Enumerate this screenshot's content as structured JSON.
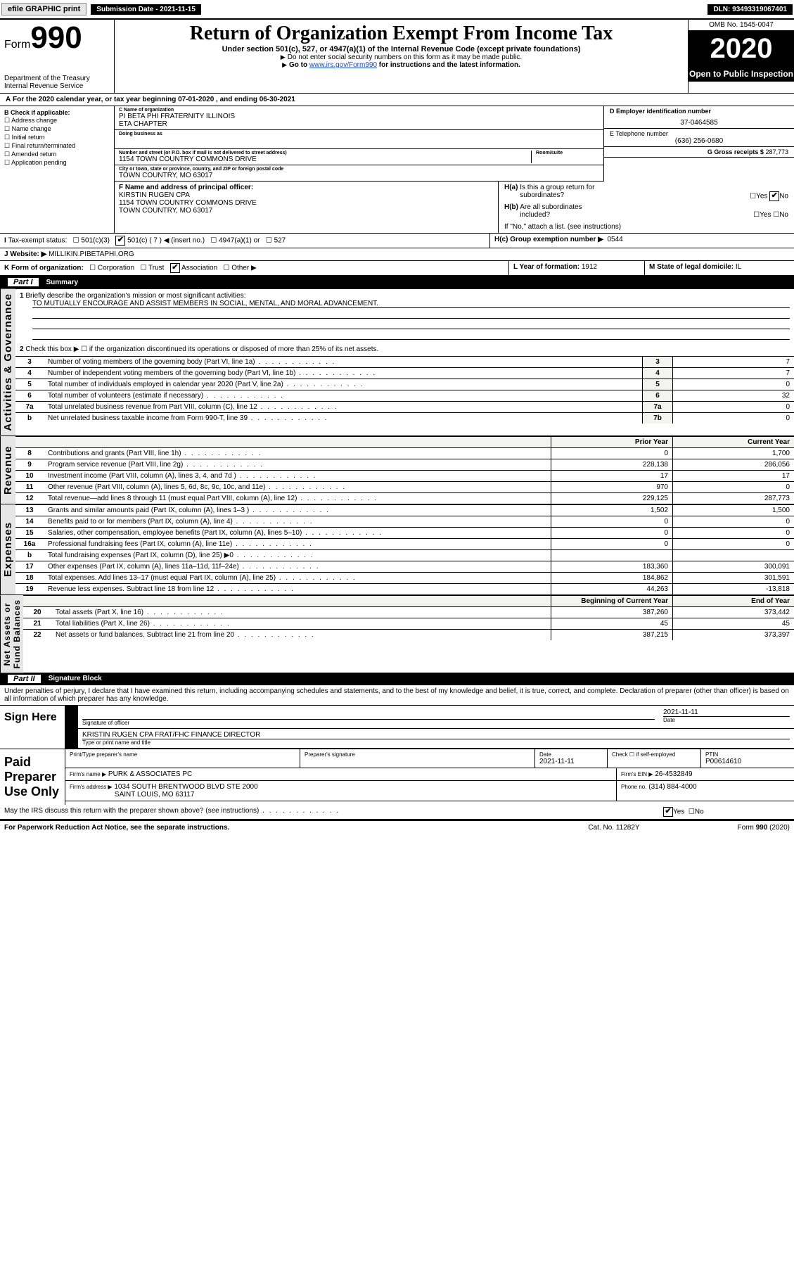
{
  "topbar": {
    "efile": "efile GRAPHIC print",
    "sub_label": "Submission Date - 2021-11-15",
    "dln": "DLN: 93493319067401"
  },
  "omb": "OMB No. 1545-0047",
  "form_no": "990",
  "form_word": "Form",
  "title": "Return of Organization Exempt From Income Tax",
  "subtitle": "Under section 501(c), 527, or 4947(a)(1) of the Internal Revenue Code (except private foundations)",
  "instr1": "Do not enter social security numbers on this form as it may be made public.",
  "instr2_pre": "Go to ",
  "instr2_link": "www.irs.gov/Form990",
  "instr2_post": " for instructions and the latest information.",
  "dept": "Department of the Treasury\nInternal Revenue Service",
  "year": "2020",
  "open": "Open to Public Inspection",
  "tax_year": "For the 2020 calendar year, or tax year beginning 07-01-2020    , and ending 06-30-2021",
  "B": {
    "hdr": "B Check if applicable:",
    "items": [
      "Address change",
      "Name change",
      "Initial return",
      "Final return/terminated",
      "Amended return",
      "Application pending"
    ]
  },
  "C": {
    "name_label": "C Name of organization",
    "name": "PI BETA PHI FRATERNITY ILLINOIS\nETA CHAPTER",
    "dba_label": "Doing business as",
    "addr_label": "Number and street (or P.O. box if mail is not delivered to street address)",
    "room_label": "Room/suite",
    "addr": "1154 TOWN COUNTRY COMMONS DRIVE",
    "city_label": "City or town, state or province, country, and ZIP or foreign postal code",
    "city": "TOWN COUNTRY, MO  63017"
  },
  "D": {
    "label": "D Employer identification number",
    "val": "37-0464585"
  },
  "E": {
    "label": "E Telephone number",
    "val": "(636) 256-0680"
  },
  "G": {
    "label": "G Gross receipts $",
    "val": "287,773"
  },
  "F": {
    "label": "F  Name and address of principal officer:",
    "name": "KIRSTIN RUGEN CPA",
    "addr1": "1154 TOWN COUNTRY COMMONS DRIVE",
    "addr2": "TOWN COUNTRY, MO  63017"
  },
  "H": {
    "a": "H(a)  Is this a group return for subordinates?",
    "b": "H(b)  Are all subordinates included?",
    "note": "If \"No,\" attach a list. (see instructions)",
    "c_label": "H(c)  Group exemption number ▶",
    "c_val": "0544",
    "yes": "Yes",
    "no": "No"
  },
  "I": {
    "label": "I  Tax-exempt status:",
    "insert": "501(c) ( 7 ) ◀ (insert no.)",
    "a": "501(c)(3)",
    "b": "4947(a)(1) or",
    "c": "527"
  },
  "J": {
    "label": "J   Website: ▶",
    "val": "MILLIKIN.PIBETAPHI.ORG"
  },
  "K": {
    "label": "K Form of organization:",
    "opts": [
      "Corporation",
      "Trust",
      "Association",
      "Other ▶"
    ],
    "checked": 2
  },
  "L": {
    "label": "L Year of formation:",
    "val": "1912"
  },
  "M": {
    "label": "M State of legal domicile:",
    "val": "IL"
  },
  "part1": {
    "num": "Part I",
    "title": "Summary"
  },
  "p1": {
    "l1": "Briefly describe the organization's mission or most significant activities:",
    "l1v": "TO MUTUALLY ENCOURAGE AND ASSIST MEMBERS IN SOCIAL, MENTAL, AND MORAL ADVANCEMENT.",
    "l2": "Check this box ▶ ☐  if the organization discontinued its operations or disposed of more than 25% of its net assets.",
    "lines_gov": [
      {
        "n": "3",
        "t": "Number of voting members of the governing body (Part VI, line 1a)",
        "r": "3",
        "v": "7"
      },
      {
        "n": "4",
        "t": "Number of independent voting members of the governing body (Part VI, line 1b)",
        "r": "4",
        "v": "7"
      },
      {
        "n": "5",
        "t": "Total number of individuals employed in calendar year 2020 (Part V, line 2a)",
        "r": "5",
        "v": "0"
      },
      {
        "n": "6",
        "t": "Total number of volunteers (estimate if necessary)",
        "r": "6",
        "v": "32"
      },
      {
        "n": "7a",
        "t": "Total unrelated business revenue from Part VIII, column (C), line 12",
        "r": "7a",
        "v": "0"
      },
      {
        "n": "b",
        "t": "Net unrelated business taxable income from Form 990-T, line 39",
        "r": "7b",
        "v": "0"
      }
    ],
    "hdr_prior": "Prior Year",
    "hdr_curr": "Current Year",
    "rev": [
      {
        "n": "8",
        "t": "Contributions and grants (Part VIII, line 1h)",
        "p": "0",
        "c": "1,700"
      },
      {
        "n": "9",
        "t": "Program service revenue (Part VIII, line 2g)",
        "p": "228,138",
        "c": "286,056"
      },
      {
        "n": "10",
        "t": "Investment income (Part VIII, column (A), lines 3, 4, and 7d )",
        "p": "17",
        "c": "17"
      },
      {
        "n": "11",
        "t": "Other revenue (Part VIII, column (A), lines 5, 6d, 8c, 9c, 10c, and 11e)",
        "p": "970",
        "c": "0"
      },
      {
        "n": "12",
        "t": "Total revenue—add lines 8 through 11 (must equal Part VIII, column (A), line 12)",
        "p": "229,125",
        "c": "287,773"
      }
    ],
    "exp": [
      {
        "n": "13",
        "t": "Grants and similar amounts paid (Part IX, column (A), lines 1–3 )",
        "p": "1,502",
        "c": "1,500"
      },
      {
        "n": "14",
        "t": "Benefits paid to or for members (Part IX, column (A), line 4)",
        "p": "0",
        "c": "0"
      },
      {
        "n": "15",
        "t": "Salaries, other compensation, employee benefits (Part IX, column (A), lines 5–10)",
        "p": "0",
        "c": "0"
      },
      {
        "n": "16a",
        "t": "Professional fundraising fees (Part IX, column (A), line 11e)",
        "p": "0",
        "c": "0"
      },
      {
        "n": "b",
        "t": "Total fundraising expenses (Part IX, column (D), line 25) ▶0",
        "p": "",
        "c": ""
      },
      {
        "n": "17",
        "t": "Other expenses (Part IX, column (A), lines 11a–11d, 11f–24e)",
        "p": "183,360",
        "c": "300,091"
      },
      {
        "n": "18",
        "t": "Total expenses. Add lines 13–17 (must equal Part IX, column (A), line 25)",
        "p": "184,862",
        "c": "301,591"
      },
      {
        "n": "19",
        "t": "Revenue less expenses. Subtract line 18 from line 12",
        "p": "44,263",
        "c": "-13,818"
      }
    ],
    "hdr_beg": "Beginning of Current Year",
    "hdr_end": "End of Year",
    "net": [
      {
        "n": "20",
        "t": "Total assets (Part X, line 16)",
        "p": "387,260",
        "c": "373,442"
      },
      {
        "n": "21",
        "t": "Total liabilities (Part X, line 26)",
        "p": "45",
        "c": "45"
      },
      {
        "n": "22",
        "t": "Net assets or fund balances. Subtract line 21 from line 20",
        "p": "387,215",
        "c": "373,397"
      }
    ]
  },
  "side_gov": "Activities & Governance",
  "side_rev": "Revenue",
  "side_exp": "Expenses",
  "side_net": "Net Assets or\nFund Balances",
  "part2": {
    "num": "Part II",
    "title": "Signature Block"
  },
  "penalty": "Under penalties of perjury, I declare that I have examined this return, including accompanying schedules and statements, and to the best of my knowledge and belief, it is true, correct, and complete. Declaration of preparer (other than officer) is based on all information of which preparer has any knowledge.",
  "sign": {
    "here": "Sign Here",
    "sig_of_off": "Signature of officer",
    "date_label": "Date",
    "date": "2021-11-11",
    "name": "KRISTIN RUGEN CPA  FRAT/FHC FINANCE DIRECTOR",
    "name_label": "Type or print name and title"
  },
  "paid": {
    "title": "Paid Preparer Use Only",
    "h1": "Print/Type preparer's name",
    "h2": "Preparer's signature",
    "h3": "Date",
    "h4": "Check ☐  if self-employed",
    "h5": "PTIN",
    "date": "2021-11-11",
    "ptin": "P00614610",
    "firm_label": "Firm's name     ▶",
    "firm": "PURK & ASSOCIATES PC",
    "ein_label": "Firm's EIN ▶",
    "ein": "26-4532849",
    "addr_label": "Firm's address ▶",
    "addr1": "1034 SOUTH BRENTWOOD BLVD STE 2000",
    "addr2": "SAINT LOUIS, MO  63117",
    "phone_label": "Phone no.",
    "phone": "(314) 884-4000"
  },
  "discuss": "May the IRS discuss this return with the preparer shown above? (see instructions)",
  "discuss_yes": "Yes",
  "discuss_no": "No",
  "foot": {
    "pra": "For Paperwork Reduction Act Notice, see the separate instructions.",
    "cat": "Cat. No. 11282Y",
    "form": "Form 990 (2020)"
  }
}
